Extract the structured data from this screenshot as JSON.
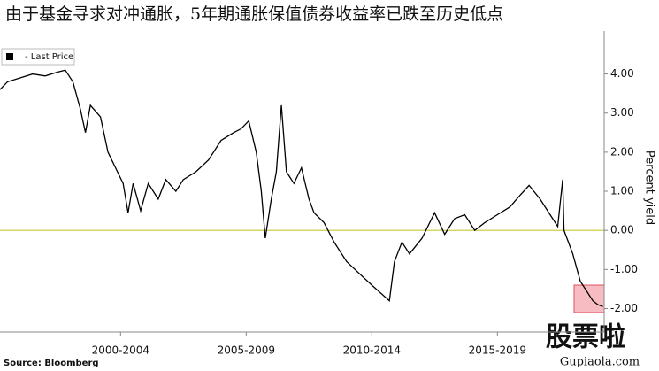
{
  "chart_data": {
    "type": "line",
    "title": "由于基金寻求对冲通胀，5年期通胀保值债券收益率已跌至历史低点",
    "y_axis_label": "Percent yield",
    "source": "Source: Bloomberg",
    "watermark": "股票啦",
    "watermark_url": "Gupiaola.com",
    "xlim": [
      1997.7,
      2021.75
    ],
    "xticks": [
      {
        "value": 2002.5,
        "label": "2000-2004"
      },
      {
        "value": 2007.5,
        "label": "2005-2009"
      },
      {
        "value": 2012.5,
        "label": "2010-2014"
      },
      {
        "value": 2017.5,
        "label": "2015-2019"
      }
    ],
    "ylim": [
      -2.6,
      5.1
    ],
    "yticks": [
      {
        "value": 4,
        "label": "4.00"
      },
      {
        "value": 3,
        "label": "3.00"
      },
      {
        "value": 2,
        "label": "2.00"
      },
      {
        "value": 1,
        "label": "1.00"
      },
      {
        "value": 0,
        "label": "0.00"
      },
      {
        "value": -1,
        "label": "-1.00"
      },
      {
        "value": -2,
        "label": "-2.00"
      }
    ],
    "zero_line_color": "#c8c832",
    "legend_position": "top-left",
    "series": [
      {
        "name": "- Last Price",
        "color": "#000000",
        "x": [
          1997.7,
          1998.0,
          1998.5,
          1999.0,
          1999.5,
          2000.0,
          2000.3,
          2000.6,
          2000.9,
          2001.1,
          2001.3,
          2001.7,
          2002.0,
          2002.3,
          2002.6,
          2002.8,
          2003.0,
          2003.3,
          2003.6,
          2004.0,
          2004.3,
          2004.7,
          2005.0,
          2005.5,
          2006.0,
          2006.5,
          2007.0,
          2007.3,
          2007.6,
          2007.9,
          2008.1,
          2008.26,
          2008.5,
          2008.7,
          2008.9,
          2009.1,
          2009.4,
          2009.7,
          2010.0,
          2010.2,
          2010.6,
          2011.0,
          2011.5,
          2012.0,
          2012.5,
          2013.2,
          2013.4,
          2013.7,
          2014.0,
          2014.5,
          2015.0,
          2015.4,
          2015.8,
          2016.2,
          2016.6,
          2017.0,
          2017.5,
          2018.0,
          2018.4,
          2018.76,
          2019.2,
          2019.6,
          2019.9,
          2020.1,
          2020.15,
          2020.5,
          2020.8,
          2021.0,
          2021.3,
          2021.5,
          2021.7
        ],
        "values": [
          3.6,
          3.8,
          3.9,
          4.0,
          3.95,
          4.05,
          4.1,
          3.8,
          3.1,
          2.5,
          3.2,
          2.9,
          2.0,
          1.6,
          1.2,
          0.45,
          1.2,
          0.5,
          1.2,
          0.8,
          1.3,
          1.0,
          1.3,
          1.5,
          1.8,
          2.3,
          2.5,
          2.6,
          2.8,
          2.0,
          1.0,
          -0.2,
          0.8,
          1.5,
          3.2,
          1.5,
          1.2,
          1.6,
          0.8,
          0.45,
          0.2,
          -0.3,
          -0.8,
          -1.1,
          -1.4,
          -1.8,
          -0.8,
          -0.3,
          -0.6,
          -0.2,
          0.45,
          -0.1,
          0.3,
          0.4,
          0.0,
          0.2,
          0.4,
          0.6,
          0.9,
          1.15,
          0.8,
          0.4,
          0.1,
          1.3,
          0.0,
          -0.6,
          -1.3,
          -1.5,
          -1.8,
          -1.9,
          -1.95
        ]
      }
    ]
  }
}
